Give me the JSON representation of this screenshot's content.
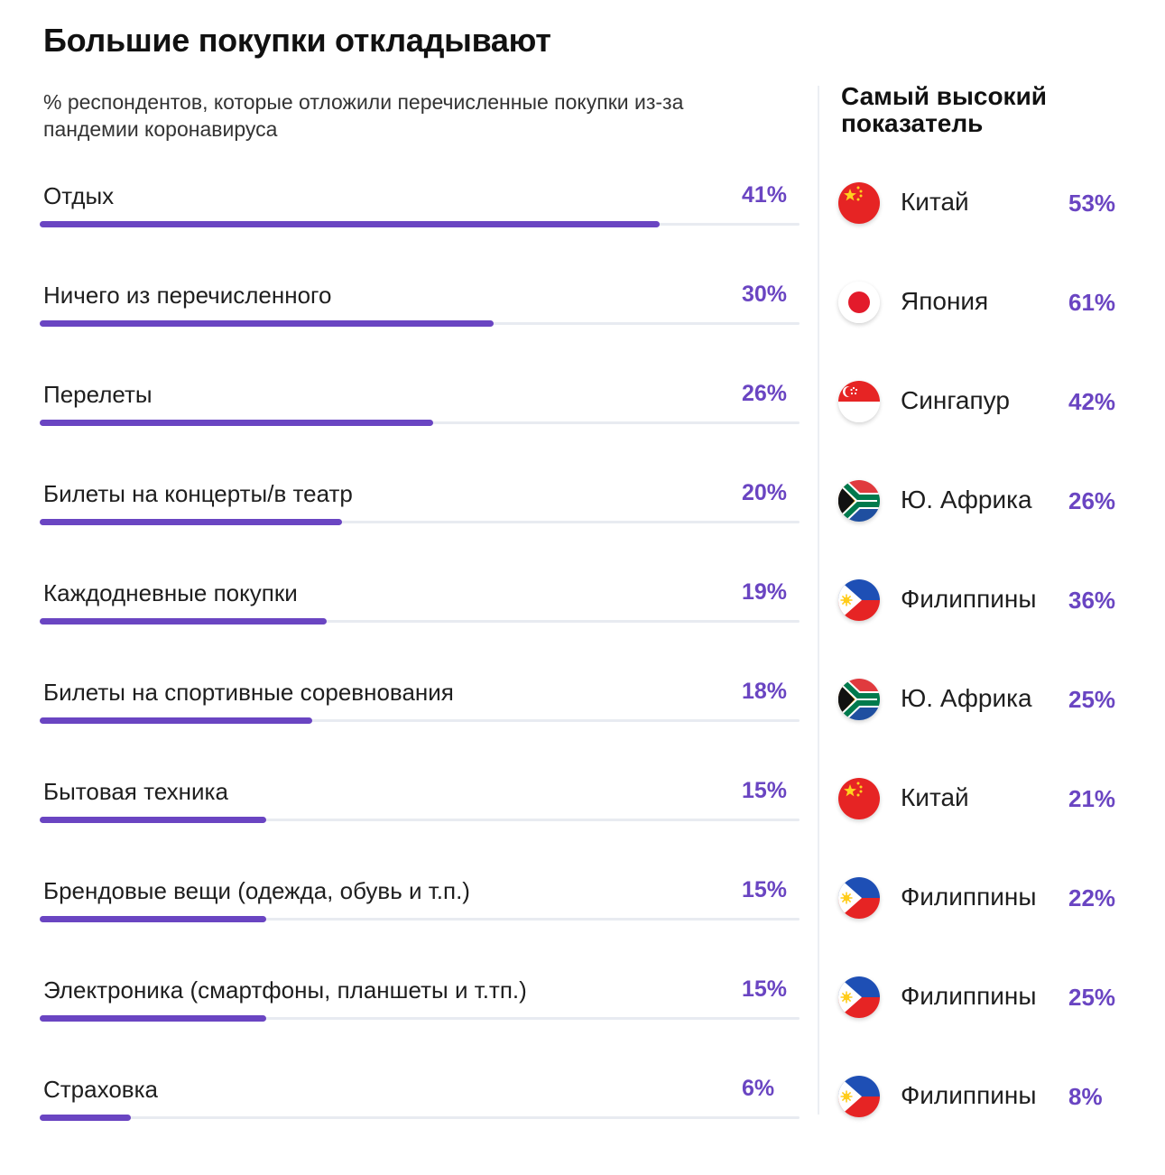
{
  "title": "Большие покупки откладывают",
  "subtitle": "% респондентов, которые отложили перечисленные покупки из-за пандемии коронавируса",
  "side_title": "Самый высокий показатель",
  "colors": {
    "accent": "#6a45c2",
    "track": "#e8ebf1"
  },
  "chart_data": {
    "type": "bar",
    "orientation": "horizontal",
    "categories": [
      "Отдых",
      "Ничего из перечисленного",
      "Перелеты",
      "Билеты на концерты/в театр",
      "Каждодневные покупки",
      "Билеты на спортивные соревнования",
      "Бытовая техника",
      "Брендовые вещи (одежда, обувь и т.п.)",
      "Электроника (смартфоны, планшеты и т.тп.)",
      "Страховка"
    ],
    "values": [
      41,
      30,
      26,
      20,
      19,
      18,
      15,
      15,
      15,
      6
    ],
    "value_labels": [
      "41%",
      "30%",
      "26%",
      "20%",
      "19%",
      "18%",
      "15%",
      "15%",
      "15%",
      "6%"
    ],
    "xlim": [
      0,
      50
    ],
    "highest": [
      {
        "country": "Китай",
        "flag": "china-flag",
        "value": 53,
        "label": "53%"
      },
      {
        "country": "Япония",
        "flag": "japan-flag",
        "value": 61,
        "label": "61%"
      },
      {
        "country": "Сингапур",
        "flag": "singapore-flag",
        "value": 42,
        "label": "42%"
      },
      {
        "country": "Ю. Африка",
        "flag": "south-africa-flag",
        "value": 26,
        "label": "26%"
      },
      {
        "country": "Филиппины",
        "flag": "philippines-flag",
        "value": 36,
        "label": "36%"
      },
      {
        "country": "Ю. Африка",
        "flag": "south-africa-flag",
        "value": 25,
        "label": "25%"
      },
      {
        "country": "Китай",
        "flag": "china-flag",
        "value": 21,
        "label": "21%"
      },
      {
        "country": "Филиппины",
        "flag": "philippines-flag",
        "value": 22,
        "label": "22%"
      },
      {
        "country": "Филиппины",
        "flag": "philippines-flag",
        "value": 25,
        "label": "25%"
      },
      {
        "country": "Филиппины",
        "flag": "philippines-flag",
        "value": 8,
        "label": "8%"
      }
    ]
  }
}
